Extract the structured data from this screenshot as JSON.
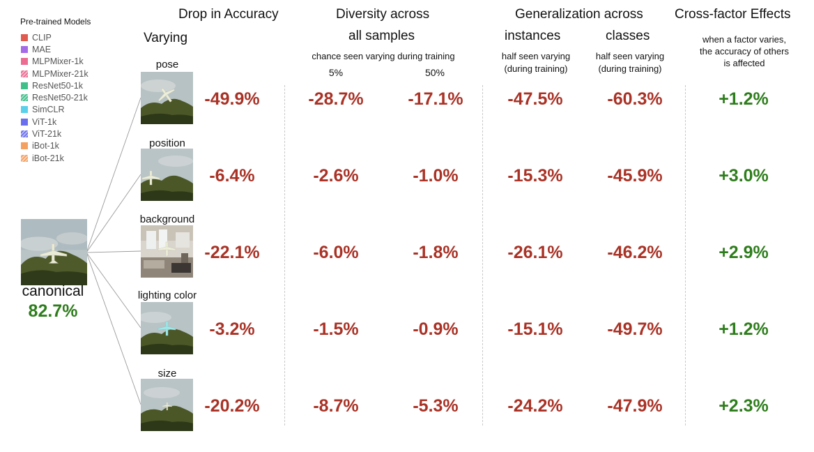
{
  "legend": {
    "title": "Pre-trained Models",
    "items": [
      {
        "label": "CLIP",
        "color": "#e05a4f",
        "hatched": false
      },
      {
        "label": "MAE",
        "color": "#a56be6",
        "hatched": false
      },
      {
        "label": "MLPMixer-1k",
        "color": "#ec6b91",
        "hatched": false
      },
      {
        "label": "MLPMixer-21k",
        "color": "#ec6b91",
        "hatched": true
      },
      {
        "label": "ResNet50-1k",
        "color": "#3fbf8a",
        "hatched": false
      },
      {
        "label": "ResNet50-21k",
        "color": "#3fbf8a",
        "hatched": true
      },
      {
        "label": "SimCLR",
        "color": "#5ad0ea",
        "hatched": false
      },
      {
        "label": "ViT-1k",
        "color": "#6a6ff0",
        "hatched": false
      },
      {
        "label": "ViT-21k",
        "color": "#6a6ff0",
        "hatched": true
      },
      {
        "label": "iBot-1k",
        "color": "#f4a060",
        "hatched": false
      },
      {
        "label": "iBot-21k",
        "color": "#f4a060",
        "hatched": true
      }
    ]
  },
  "headers": {
    "drop": "Drop in Accuracy",
    "varying": "Varying",
    "diversity": "Diversity across",
    "all_samples": "all samples",
    "chance_note": "chance seen varying during training",
    "pct5": "5%",
    "pct50": "50%",
    "generalization": "Generalization across",
    "instances": "instances",
    "classes": "classes",
    "half_note_line1": "half seen varying",
    "half_note_line2": "(during training)",
    "cross": "Cross-factor Effects",
    "cross_note_line1": "when a factor varies,",
    "cross_note_line2": "the accuracy of others",
    "cross_note_line3": "is affected"
  },
  "canonical": {
    "label": "canonical",
    "accuracy": "82.7%"
  },
  "rows": [
    {
      "factor": "pose",
      "drop": "-49.9%",
      "div5": "-28.7%",
      "div50": "-17.1%",
      "instances": "-47.5%",
      "classes": "-60.3%",
      "cross": "+1.2%"
    },
    {
      "factor": "position",
      "drop": "-6.4%",
      "div5": "-2.6%",
      "div50": "-1.0%",
      "instances": "-15.3%",
      "classes": "-45.9%",
      "cross": "+3.0%"
    },
    {
      "factor": "background",
      "drop": "-22.1%",
      "div5": "-6.0%",
      "div50": "-1.8%",
      "instances": "-26.1%",
      "classes": "-46.2%",
      "cross": "+2.9%"
    },
    {
      "factor": "lighting color",
      "drop": "-3.2%",
      "div5": "-1.5%",
      "div50": "-0.9%",
      "instances": "-15.1%",
      "classes": "-49.7%",
      "cross": "+1.2%"
    },
    {
      "factor": "size",
      "drop": "-20.2%",
      "div5": "-8.7%",
      "div50": "-5.3%",
      "instances": "-24.2%",
      "classes": "-47.9%",
      "cross": "+2.3%"
    }
  ]
}
